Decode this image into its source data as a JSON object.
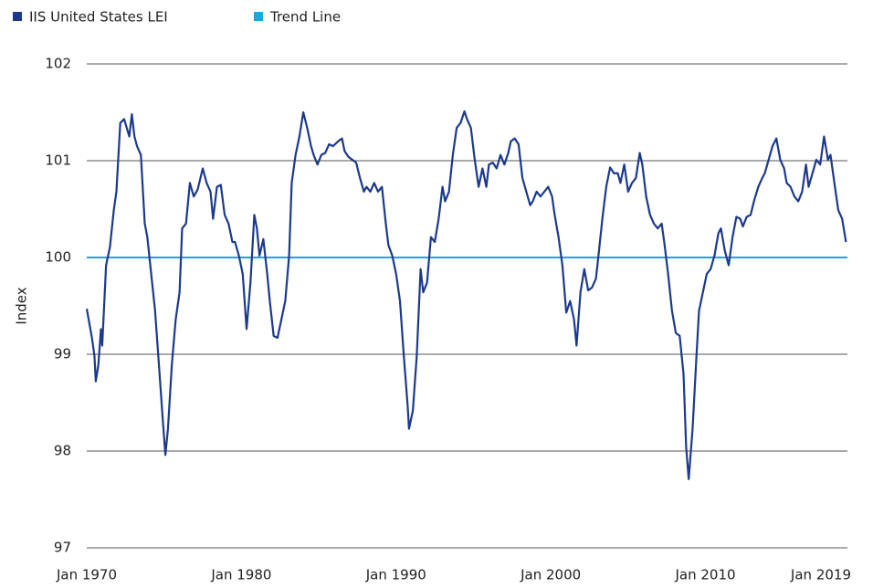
{
  "chart_data": {
    "type": "line",
    "y_label": "Index",
    "x": [
      "1970-01",
      "1970-05",
      "1970-07",
      "1970-08",
      "1970-10",
      "1970-12",
      "1971-01",
      "1971-04",
      "1971-07",
      "1971-10",
      "1971-12",
      "1972-03",
      "1972-06",
      "1972-10",
      "1972-12",
      "1973-02",
      "1973-04",
      "1973-07",
      "1973-10",
      "1973-12",
      "1974-03",
      "1974-06",
      "1974-09",
      "1974-12",
      "1975-02",
      "1975-04",
      "1975-07",
      "1975-10",
      "1976-01",
      "1976-03",
      "1976-06",
      "1976-09",
      "1976-12",
      "1977-03",
      "1977-07",
      "1977-10",
      "1978-01",
      "1978-03",
      "1978-06",
      "1978-09",
      "1978-12",
      "1979-03",
      "1979-06",
      "1979-08",
      "1979-11",
      "1980-02",
      "1980-05",
      "1980-08",
      "1980-11",
      "1981-01",
      "1981-03",
      "1981-06",
      "1981-09",
      "1981-11",
      "1982-02",
      "1982-05",
      "1982-08",
      "1982-11",
      "1983-02",
      "1983-04",
      "1983-07",
      "1983-10",
      "1984-01",
      "1984-04",
      "1984-07",
      "1984-09",
      "1984-12",
      "1985-03",
      "1985-06",
      "1985-09",
      "1985-12",
      "1986-04",
      "1986-07",
      "1986-09",
      "1986-12",
      "1987-03",
      "1987-06",
      "1987-09",
      "1987-12",
      "1988-02",
      "1988-05",
      "1988-08",
      "1988-11",
      "1989-02",
      "1989-05",
      "1989-07",
      "1989-10",
      "1990-01",
      "1990-04",
      "1990-07",
      "1990-10",
      "1990-11",
      "1991-02",
      "1991-05",
      "1991-08",
      "1991-10",
      "1992-01",
      "1992-04",
      "1992-07",
      "1992-10",
      "1993-01",
      "1993-03",
      "1993-06",
      "1993-09",
      "1993-12",
      "1994-03",
      "1994-06",
      "1994-08",
      "1994-11",
      "1995-02",
      "1995-05",
      "1995-08",
      "1995-11",
      "1996-01",
      "1996-04",
      "1996-07",
      "1996-10",
      "1997-01",
      "1997-04",
      "1997-06",
      "1997-09",
      "1997-12",
      "1998-03",
      "1998-06",
      "1998-09",
      "1998-11",
      "1999-02",
      "1999-05",
      "1999-08",
      "1999-11",
      "2000-02",
      "2000-04",
      "2000-07",
      "2000-10",
      "2001-01",
      "2001-04",
      "2001-07",
      "2001-09",
      "2001-12",
      "2002-03",
      "2002-06",
      "2002-09",
      "2002-12",
      "2003-02",
      "2003-05",
      "2003-08",
      "2003-11",
      "2004-02",
      "2004-05",
      "2004-07",
      "2004-10",
      "2005-01",
      "2005-04",
      "2005-07",
      "2005-10",
      "2005-12",
      "2006-03",
      "2006-06",
      "2006-09",
      "2006-12",
      "2007-03",
      "2007-05",
      "2007-08",
      "2007-11",
      "2008-02",
      "2008-05",
      "2008-08",
      "2008-10",
      "2008-12",
      "2009-03",
      "2009-06",
      "2009-08",
      "2009-11",
      "2010-02",
      "2010-05",
      "2010-08",
      "2010-11",
      "2011-01",
      "2011-04",
      "2011-07",
      "2011-10",
      "2012-01",
      "2012-04",
      "2012-06",
      "2012-09",
      "2012-12",
      "2013-03",
      "2013-06",
      "2013-09",
      "2013-11",
      "2014-02",
      "2014-05",
      "2014-08",
      "2014-11",
      "2015-02",
      "2015-04",
      "2015-07",
      "2015-10",
      "2016-01",
      "2016-04",
      "2016-07",
      "2016-09",
      "2016-12",
      "2017-03",
      "2017-06",
      "2017-09",
      "2017-12",
      "2018-02",
      "2018-05",
      "2018-08",
      "2018-11",
      "2019-02"
    ],
    "series": [
      {
        "name": "IIS United States LEI",
        "color": "#1c3a8c",
        "values": [
          99.47,
          99.17,
          98.98,
          98.72,
          98.89,
          99.26,
          99.09,
          99.92,
          100.11,
          100.49,
          100.68,
          101.39,
          101.43,
          101.25,
          101.48,
          101.25,
          101.15,
          101.06,
          100.35,
          100.21,
          99.83,
          99.45,
          98.89,
          98.32,
          97.96,
          98.23,
          98.89,
          99.36,
          99.64,
          100.3,
          100.35,
          100.77,
          100.63,
          100.7,
          100.92,
          100.77,
          100.68,
          100.4,
          100.73,
          100.75,
          100.44,
          100.35,
          100.16,
          100.16,
          100.02,
          99.83,
          99.26,
          99.74,
          100.44,
          100.3,
          100.02,
          100.19,
          99.83,
          99.55,
          99.19,
          99.17,
          99.36,
          99.55,
          100.02,
          100.77,
          101.06,
          101.25,
          101.5,
          101.34,
          101.15,
          101.06,
          100.96,
          101.06,
          101.08,
          101.17,
          101.15,
          101.2,
          101.23,
          101.1,
          101.04,
          101.01,
          100.98,
          100.82,
          100.68,
          100.73,
          100.68,
          100.77,
          100.68,
          100.73,
          100.35,
          100.13,
          100.02,
          99.83,
          99.55,
          98.98,
          98.46,
          98.23,
          98.42,
          98.98,
          99.88,
          99.64,
          99.74,
          100.21,
          100.16,
          100.4,
          100.73,
          100.58,
          100.68,
          101.06,
          101.34,
          101.39,
          101.51,
          101.43,
          101.34,
          101.01,
          100.73,
          100.92,
          100.73,
          100.96,
          100.98,
          100.92,
          101.06,
          100.96,
          101.08,
          101.2,
          101.23,
          101.17,
          100.82,
          100.68,
          100.54,
          100.58,
          100.68,
          100.63,
          100.68,
          100.73,
          100.63,
          100.44,
          100.21,
          99.92,
          99.43,
          99.55,
          99.36,
          99.09,
          99.64,
          99.88,
          99.66,
          99.69,
          99.78,
          100.02,
          100.4,
          100.73,
          100.93,
          100.87,
          100.87,
          100.77,
          100.96,
          100.68,
          100.77,
          100.82,
          101.08,
          100.96,
          100.63,
          100.44,
          100.35,
          100.3,
          100.35,
          100.16,
          99.83,
          99.45,
          99.22,
          99.19,
          98.79,
          98.04,
          97.71,
          98.23,
          98.98,
          99.45,
          99.64,
          99.83,
          99.88,
          100.02,
          100.25,
          100.3,
          100.07,
          99.92,
          100.21,
          100.42,
          100.4,
          100.32,
          100.42,
          100.44,
          100.6,
          100.73,
          100.82,
          100.87,
          101.01,
          101.15,
          101.23,
          101.01,
          100.92,
          100.77,
          100.73,
          100.63,
          100.58,
          100.68,
          100.96,
          100.73,
          100.87,
          101.01,
          100.96,
          101.25,
          101.01,
          101.06,
          100.77,
          100.49,
          100.4,
          100.16
        ]
      }
    ],
    "trend_line": {
      "name": "Trend Line",
      "color": "#1aa8e0",
      "value": 100
    },
    "xlim": [
      "1970-01",
      "2019-01"
    ],
    "xticks": [
      {
        "value": "1970-01",
        "label": "Jan 1970"
      },
      {
        "value": "1980-01",
        "label": "Jan 1980"
      },
      {
        "value": "1990-01",
        "label": "Jan 1990"
      },
      {
        "value": "2000-01",
        "label": "Jan 2000"
      },
      {
        "value": "2010-01",
        "label": "Jan 2010"
      },
      {
        "value": "2019-01",
        "label": "Jan 2019"
      }
    ],
    "ylim": [
      97,
      102
    ],
    "yticks": [
      97,
      98,
      99,
      100,
      101,
      102
    ],
    "grid": true
  }
}
